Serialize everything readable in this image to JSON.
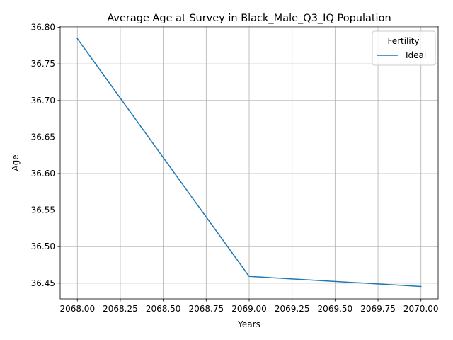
{
  "chart_data": {
    "type": "line",
    "title": "Average Age at Survey in Black_Male_Q3_IQ Population",
    "xlabel": "Years",
    "ylabel": "Age",
    "x": [
      2068,
      2069,
      2070
    ],
    "series": [
      {
        "name": "Ideal",
        "values": [
          36.7845,
          36.4592,
          36.4455
        ],
        "color": "#1f77b4"
      }
    ],
    "xlim": [
      2067.9,
      2070.1
    ],
    "ylim": [
      36.4285,
      36.8015
    ],
    "x_ticks": [
      2068.0,
      2068.25,
      2068.5,
      2068.75,
      2069.0,
      2069.25,
      2069.5,
      2069.75,
      2070.0
    ],
    "x_tick_labels": [
      "2068.00",
      "2068.25",
      "2068.50",
      "2068.75",
      "2069.00",
      "2069.25",
      "2069.50",
      "2069.75",
      "2070.00"
    ],
    "y_ticks": [
      36.45,
      36.5,
      36.55,
      36.6,
      36.65,
      36.7,
      36.75,
      36.8
    ],
    "y_tick_labels": [
      "36.45",
      "36.50",
      "36.55",
      "36.60",
      "36.65",
      "36.70",
      "36.75",
      "36.80"
    ],
    "grid": true,
    "legend": {
      "title": "Fertility",
      "placement": "top-right"
    }
  },
  "colors": {
    "grid": "#b0b0b0",
    "axes": "#000000",
    "background": "#ffffff"
  }
}
